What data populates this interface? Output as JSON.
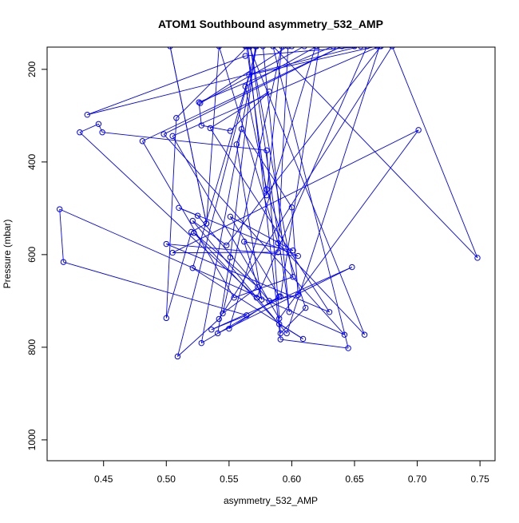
{
  "chart_data": {
    "type": "line",
    "title": "ATOM1 Southbound asymmetry_532_AMP",
    "xlabel": "asymmetry_532_AMP",
    "ylabel": "Pressure (mbar)",
    "xlim": [
      0.405,
      0.762
    ],
    "ylim": [
      1045,
      152
    ],
    "y_inverted": true,
    "x_ticks": [
      0.45,
      0.5,
      0.55,
      0.6,
      0.65,
      0.7,
      0.75
    ],
    "x_tick_labels": [
      "0.45",
      "0.50",
      "0.55",
      "0.60",
      "0.65",
      "0.70",
      "0.75"
    ],
    "y_ticks": [
      200,
      400,
      600,
      800,
      1000
    ],
    "y_tick_labels": [
      "200",
      "400",
      "600",
      "800",
      "1000"
    ],
    "grid": false,
    "legend": "none",
    "series_color": "#0000ff",
    "markers": "open-circle",
    "series": [
      {
        "x": [
          0.655,
          0.437,
          0.563,
          0.66,
          0.572,
          0.431,
          0.446,
          0.449,
          0.58,
          0.591,
          0.611,
          0.58,
          0.563,
          0.62,
          0.633,
          0.526,
          0.528,
          0.551,
          0.582,
          0.535,
          0.63,
          0.5,
          0.605,
          0.51,
          0.525,
          0.582,
          0.605,
          0.6,
          0.56,
          0.556,
          0.576,
          0.562,
          0.601,
          0.551,
          0.59,
          0.55,
          0.619,
          0.577,
          0.598,
          0.567,
          0.601,
          0.554,
          0.481,
          0.64,
          0.498,
          0.642,
          0.415,
          0.418,
          0.564,
          0.536,
          0.648,
          0.541,
          0.551,
          0.571,
          0.65,
          0.61,
          0.527,
          0.597,
          0.589,
          0.505,
          0.701,
          0.59,
          0.505,
          0.67,
          0.596,
          0.521,
          0.548,
          0.671,
          0.564,
          0.58,
          0.592,
          0.545,
          0.573,
          0.522,
          0.59,
          0.609,
          0.521,
          0.566,
          0.668,
          0.563,
          0.627,
          0.591,
          0.528,
          0.572,
          0.509,
          0.542,
          0.68,
          0.748,
          0.585,
          0.645,
          0.591,
          0.565,
          0.508,
          0.5,
          0.52,
          0.532,
          0.503,
          0.532,
          0.542,
          0.589,
          0.658,
          0.566,
          0.6
        ],
        "y": [
          150,
          298,
          171,
          150,
          693,
          336,
          318,
          336,
          375,
          770,
          715,
          459,
          237,
          150,
          150,
          271,
          321,
          333,
          248,
          327,
          724,
          577,
          603,
          499,
          516,
          700,
          687,
          498,
          329,
          362,
          697,
          572,
          591,
          518,
          690,
          760,
          150,
          150,
          724,
          150,
          648,
          693,
          355,
          150,
          340,
          773,
          502,
          616,
          731,
          762,
          627,
          770,
          606,
          150,
          150,
          150,
          273,
          150,
          595,
          596,
          331,
          738,
          344,
          150,
          770,
          527,
          580,
          150,
          150,
          472,
          150,
          727,
          670,
          553,
          750,
          782,
          629,
          212,
          150,
          150,
          62,
          691,
          791,
          150,
          820,
          739,
          150,
          607,
          150,
          802,
          783,
          150,
          305,
          737,
          551,
          533,
          150,
          533,
          150,
          575,
          773,
          150,
          150
        ]
      }
    ]
  }
}
